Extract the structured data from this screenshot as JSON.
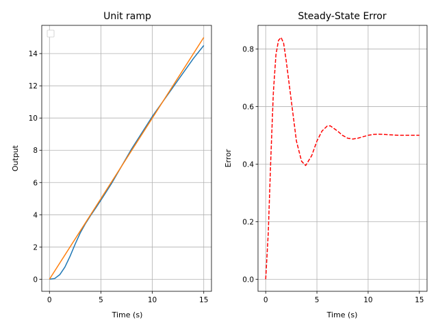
{
  "chart_data": [
    {
      "type": "line",
      "title": "Unit ramp",
      "xlabel": "Time (s)",
      "ylabel": "Output",
      "xlim": [
        -0.75,
        15.75
      ],
      "ylim": [
        -0.75,
        15.75
      ],
      "xticks": [
        0,
        5,
        10,
        15
      ],
      "yticks": [
        0,
        2,
        4,
        6,
        8,
        10,
        12,
        14
      ],
      "grid": true,
      "legend": "upper-left (empty)",
      "series": [
        {
          "color": "#1f77b4",
          "style": "solid",
          "x": [
            0,
            0.5,
            1,
            1.5,
            2,
            2.5,
            3,
            3.5,
            4,
            4.5,
            5,
            6,
            7,
            8,
            9,
            10,
            11,
            12,
            13,
            14,
            15
          ],
          "y": [
            0,
            0.04,
            0.28,
            0.75,
            1.42,
            2.18,
            2.88,
            3.45,
            3.95,
            4.42,
            4.9,
            5.9,
            7.0,
            8.1,
            9.1,
            10.1,
            11.0,
            11.9,
            12.8,
            13.7,
            14.5
          ]
        },
        {
          "color": "#ff7f0e",
          "style": "solid",
          "x": [
            0,
            15
          ],
          "y": [
            0,
            15
          ]
        }
      ]
    },
    {
      "type": "line",
      "title": "Steady-State Error",
      "xlabel": "Time (s)",
      "ylabel": "Error",
      "xlim": [
        -0.75,
        15.75
      ],
      "ylim": [
        -0.042,
        0.882
      ],
      "xticks": [
        0,
        5,
        10,
        15
      ],
      "yticks": [
        0.0,
        0.2,
        0.4,
        0.6,
        0.8
      ],
      "yticklabels": [
        "0.0",
        "0.2",
        "0.4",
        "0.6",
        "0.8"
      ],
      "grid": true,
      "series": [
        {
          "color": "#ff0000",
          "style": "dashed",
          "x": [
            0,
            0.25,
            0.5,
            0.75,
            1.0,
            1.25,
            1.5,
            1.75,
            2.0,
            2.5,
            3.0,
            3.5,
            3.9,
            4.5,
            5.0,
            5.5,
            6.0,
            6.3,
            7.0,
            7.5,
            8.0,
            8.5,
            9.0,
            10.0,
            10.5,
            11.0,
            12.0,
            13.0,
            14.0,
            15.0
          ],
          "y": [
            0,
            0.16,
            0.42,
            0.65,
            0.78,
            0.83,
            0.84,
            0.82,
            0.76,
            0.62,
            0.48,
            0.41,
            0.395,
            0.43,
            0.48,
            0.515,
            0.532,
            0.533,
            0.515,
            0.5,
            0.49,
            0.487,
            0.49,
            0.5,
            0.503,
            0.504,
            0.502,
            0.5,
            0.5,
            0.5
          ]
        }
      ]
    }
  ]
}
